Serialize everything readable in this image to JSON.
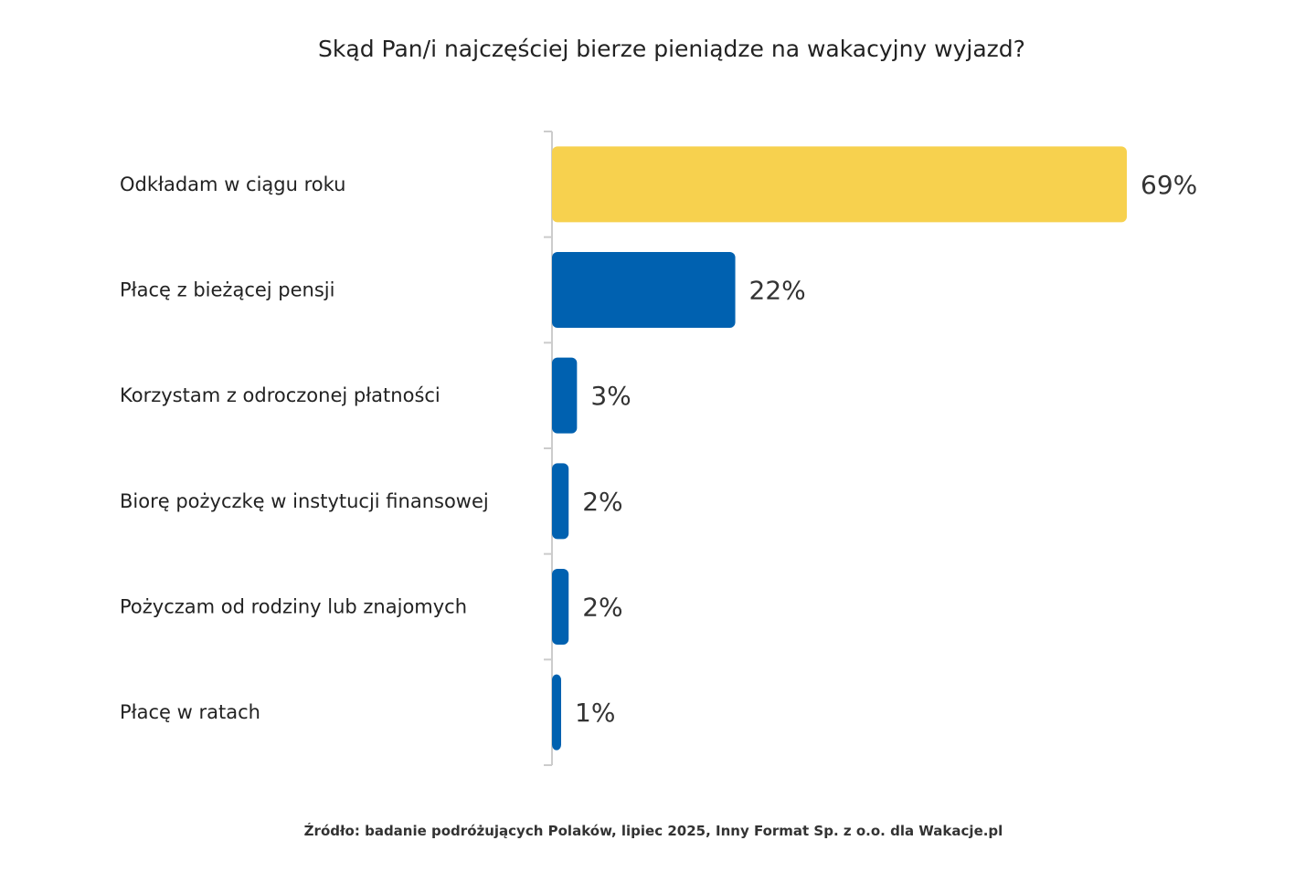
{
  "chart_data": {
    "type": "bar",
    "orientation": "horizontal",
    "title": "Skąd Pan/i najczęściej bierze pieniądze na wakacyjny wyjazd?",
    "categories": [
      "Odkładam w ciągu roku",
      "Płacę z bieżącej pensji",
      "Korzystam z odroczonej płatności",
      "Biorę pożyczkę w instytucji finansowej",
      "Pożyczam od rodziny lub znajomych",
      "Płacę w ratach"
    ],
    "values": [
      69,
      22,
      3,
      2,
      2,
      1
    ],
    "value_labels": [
      "69%",
      "22%",
      "3%",
      "2%",
      "2%",
      "1%"
    ],
    "unit": "%",
    "xlim": [
      0,
      69
    ],
    "grid": false,
    "legend": "none",
    "colors": {
      "highlight": "#F7D14E",
      "default": "#0061B0",
      "axis": "#cccccc"
    },
    "highlight_index": 0,
    "source": "Źródło: badanie podróżujących Polaków, lipiec 2025, Inny Format Sp. z o.o. dla Wakacje.pl"
  }
}
